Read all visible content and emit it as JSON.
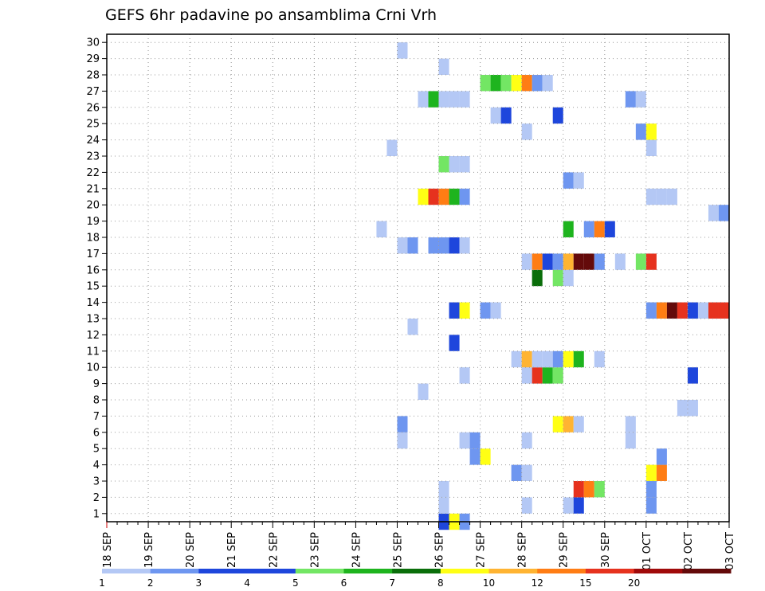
{
  "chart_data": {
    "type": "heatmap",
    "title": "GEFS 6hr padavine po ansamblima Crni Vrh",
    "xlabel": "",
    "ylabel": "",
    "x_tick_labels": [
      "18 SEP",
      "19 SEP",
      "20 SEP",
      "21 SEP",
      "22 SEP",
      "23 SEP",
      "24 SEP",
      "25 SEP",
      "26 SEP",
      "27 SEP",
      "28 SEP",
      "29 SEP",
      "30 SEP",
      "01 OCT",
      "02 OCT",
      "03 OCT"
    ],
    "x_unit": "day offset from 18 SEP, 6-hour steps",
    "xlim": [
      0,
      15
    ],
    "y_tick_labels": [
      "1",
      "2",
      "3",
      "4",
      "5",
      "6",
      "7",
      "8",
      "9",
      "10",
      "11",
      "12",
      "13",
      "14",
      "15",
      "16",
      "17",
      "18",
      "19",
      "20",
      "21",
      "22",
      "23",
      "24",
      "25",
      "26",
      "27",
      "28",
      "29",
      "30"
    ],
    "ylim": [
      0,
      30
    ],
    "grid": true,
    "colorbar": {
      "labels": [
        "1",
        "2",
        "3",
        "4",
        "5",
        "6",
        "7",
        "8",
        "10",
        "12",
        "15",
        "20"
      ],
      "colors": [
        "#b4c8f5",
        "#6e96f0",
        "#1e46dc",
        "#1e46dc",
        "#73e664",
        "#1eb41e",
        "#0a6e0a",
        "#ffff14",
        "#ffb432",
        "#ff7d14",
        "#e6321e",
        "#a00a0a",
        "#640a0a"
      ]
    },
    "cells": [
      {
        "member": 0,
        "t": 8.0,
        "v": 3
      },
      {
        "member": 0,
        "t": 8.25,
        "v": 8
      },
      {
        "member": 0,
        "t": 8.5,
        "v": 2
      },
      {
        "member": 1,
        "t": 8.0,
        "v": 1
      },
      {
        "member": 1,
        "t": 10.0,
        "v": 1
      },
      {
        "member": 1,
        "t": 11.0,
        "v": 1
      },
      {
        "member": 1,
        "t": 11.25,
        "v": 3
      },
      {
        "member": 1,
        "t": 13.0,
        "v": 2
      },
      {
        "member": 2,
        "t": 8.0,
        "v": 1
      },
      {
        "member": 2,
        "t": 11.25,
        "v": 15
      },
      {
        "member": 2,
        "t": 11.5,
        "v": 12
      },
      {
        "member": 2,
        "t": 11.75,
        "v": 5
      },
      {
        "member": 2,
        "t": 13.0,
        "v": 2
      },
      {
        "member": 3,
        "t": 9.75,
        "v": 2
      },
      {
        "member": 3,
        "t": 10.0,
        "v": 1
      },
      {
        "member": 3,
        "t": 13.0,
        "v": 8
      },
      {
        "member": 3,
        "t": 13.25,
        "v": 12
      },
      {
        "member": 4,
        "t": 8.75,
        "v": 2
      },
      {
        "member": 4,
        "t": 9.0,
        "v": 8
      },
      {
        "member": 4,
        "t": 13.25,
        "v": 2
      },
      {
        "member": 5,
        "t": 7.0,
        "v": 1
      },
      {
        "member": 5,
        "t": 8.5,
        "v": 1
      },
      {
        "member": 5,
        "t": 8.75,
        "v": 2
      },
      {
        "member": 5,
        "t": 10.0,
        "v": 1
      },
      {
        "member": 5,
        "t": 12.5,
        "v": 1
      },
      {
        "member": 6,
        "t": 7.0,
        "v": 2
      },
      {
        "member": 6,
        "t": 10.75,
        "v": 8
      },
      {
        "member": 6,
        "t": 11.0,
        "v": 10
      },
      {
        "member": 6,
        "t": 11.25,
        "v": 1
      },
      {
        "member": 6,
        "t": 12.5,
        "v": 1
      },
      {
        "member": 7,
        "t": 13.75,
        "v": 1
      },
      {
        "member": 7,
        "t": 14.0,
        "v": 1
      },
      {
        "member": 8,
        "t": 7.5,
        "v": 1
      },
      {
        "member": 9,
        "t": 8.5,
        "v": 1
      },
      {
        "member": 9,
        "t": 10.0,
        "v": 1
      },
      {
        "member": 9,
        "t": 10.25,
        "v": 15
      },
      {
        "member": 9,
        "t": 10.5,
        "v": 6
      },
      {
        "member": 9,
        "t": 10.75,
        "v": 5
      },
      {
        "member": 9,
        "t": 14.0,
        "v": 3
      },
      {
        "member": 10,
        "t": 9.75,
        "v": 1
      },
      {
        "member": 10,
        "t": 10.0,
        "v": 10
      },
      {
        "member": 10,
        "t": 10.25,
        "v": 1
      },
      {
        "member": 10,
        "t": 10.5,
        "v": 1
      },
      {
        "member": 10,
        "t": 10.75,
        "v": 2
      },
      {
        "member": 10,
        "t": 11.0,
        "v": 8
      },
      {
        "member": 10,
        "t": 11.25,
        "v": 6
      },
      {
        "member": 10,
        "t": 11.75,
        "v": 1
      },
      {
        "member": 11,
        "t": 8.25,
        "v": 3
      },
      {
        "member": 12,
        "t": 7.25,
        "v": 1
      },
      {
        "member": 13,
        "t": 8.25,
        "v": 3
      },
      {
        "member": 13,
        "t": 8.5,
        "v": 8
      },
      {
        "member": 13,
        "t": 9.0,
        "v": 2
      },
      {
        "member": 13,
        "t": 9.25,
        "v": 1
      },
      {
        "member": 13,
        "t": 13.0,
        "v": 2
      },
      {
        "member": 13,
        "t": 13.25,
        "v": 12
      },
      {
        "member": 13,
        "t": 13.5,
        "v": 20
      },
      {
        "member": 13,
        "t": 13.75,
        "v": 15
      },
      {
        "member": 13,
        "t": 14.0,
        "v": 3
      },
      {
        "member": 13,
        "t": 14.25,
        "v": 1
      },
      {
        "member": 13,
        "t": 14.5,
        "v": 15
      },
      {
        "member": 13,
        "t": 14.75,
        "v": 15
      },
      {
        "member": 15,
        "t": 10.25,
        "v": 7
      },
      {
        "member": 15,
        "t": 10.75,
        "v": 5
      },
      {
        "member": 15,
        "t": 11.0,
        "v": 1
      },
      {
        "member": 16,
        "t": 10.0,
        "v": 1
      },
      {
        "member": 16,
        "t": 10.25,
        "v": 12
      },
      {
        "member": 16,
        "t": 10.5,
        "v": 3
      },
      {
        "member": 16,
        "t": 10.75,
        "v": 2
      },
      {
        "member": 16,
        "t": 11.0,
        "v": 10
      },
      {
        "member": 16,
        "t": 11.25,
        "v": 20
      },
      {
        "member": 16,
        "t": 11.5,
        "v": 20
      },
      {
        "member": 16,
        "t": 11.75,
        "v": 2
      },
      {
        "member": 16,
        "t": 12.25,
        "v": 1
      },
      {
        "member": 16,
        "t": 12.75,
        "v": 5
      },
      {
        "member": 16,
        "t": 13.0,
        "v": 15
      },
      {
        "member": 17,
        "t": 7.0,
        "v": 1
      },
      {
        "member": 17,
        "t": 7.25,
        "v": 2
      },
      {
        "member": 17,
        "t": 7.75,
        "v": 2
      },
      {
        "member": 17,
        "t": 8.0,
        "v": 2
      },
      {
        "member": 17,
        "t": 8.25,
        "v": 3
      },
      {
        "member": 17,
        "t": 8.5,
        "v": 1
      },
      {
        "member": 18,
        "t": 6.5,
        "v": 1
      },
      {
        "member": 18,
        "t": 11.5,
        "v": 2
      },
      {
        "member": 18,
        "t": 11.75,
        "v": 12
      },
      {
        "member": 18,
        "t": 12.0,
        "v": 3
      },
      {
        "member": 18,
        "t": 11.0,
        "v": 6
      },
      {
        "member": 19,
        "t": 14.5,
        "v": 1
      },
      {
        "member": 19,
        "t": 14.75,
        "v": 2
      },
      {
        "member": 20,
        "t": 7.5,
        "v": 8
      },
      {
        "member": 20,
        "t": 7.75,
        "v": 15
      },
      {
        "member": 20,
        "t": 8.0,
        "v": 12
      },
      {
        "member": 20,
        "t": 8.25,
        "v": 6
      },
      {
        "member": 20,
        "t": 8.5,
        "v": 2
      },
      {
        "member": 20,
        "t": 13.0,
        "v": 1
      },
      {
        "member": 20,
        "t": 13.25,
        "v": 1
      },
      {
        "member": 20,
        "t": 13.5,
        "v": 1
      },
      {
        "member": 21,
        "t": 11.0,
        "v": 2
      },
      {
        "member": 21,
        "t": 11.25,
        "v": 1
      },
      {
        "member": 22,
        "t": 8.0,
        "v": 5
      },
      {
        "member": 22,
        "t": 8.25,
        "v": 1
      },
      {
        "member": 22,
        "t": 8.5,
        "v": 1
      },
      {
        "member": 23,
        "t": 6.75,
        "v": 1
      },
      {
        "member": 23,
        "t": 13.0,
        "v": 1
      },
      {
        "member": 24,
        "t": 10.0,
        "v": 1
      },
      {
        "member": 24,
        "t": 12.75,
        "v": 2
      },
      {
        "member": 24,
        "t": 13.0,
        "v": 8
      },
      {
        "member": 25,
        "t": 9.25,
        "v": 1
      },
      {
        "member": 25,
        "t": 9.5,
        "v": 3
      },
      {
        "member": 25,
        "t": 10.75,
        "v": 3
      },
      {
        "member": 26,
        "t": 7.5,
        "v": 1
      },
      {
        "member": 26,
        "t": 7.75,
        "v": 6
      },
      {
        "member": 26,
        "t": 8.0,
        "v": 1
      },
      {
        "member": 26,
        "t": 8.25,
        "v": 1
      },
      {
        "member": 26,
        "t": 8.5,
        "v": 1
      },
      {
        "member": 26,
        "t": 12.5,
        "v": 2
      },
      {
        "member": 26,
        "t": 12.75,
        "v": 1
      },
      {
        "member": 27,
        "t": 9.0,
        "v": 5
      },
      {
        "member": 27,
        "t": 9.25,
        "v": 6
      },
      {
        "member": 27,
        "t": 9.5,
        "v": 5
      },
      {
        "member": 27,
        "t": 9.75,
        "v": 8
      },
      {
        "member": 27,
        "t": 10.0,
        "v": 12
      },
      {
        "member": 27,
        "t": 10.25,
        "v": 2
      },
      {
        "member": 27,
        "t": 10.5,
        "v": 1
      },
      {
        "member": 28,
        "t": 8.0,
        "v": 1
      },
      {
        "member": 29,
        "t": 7.0,
        "v": 1
      }
    ]
  }
}
